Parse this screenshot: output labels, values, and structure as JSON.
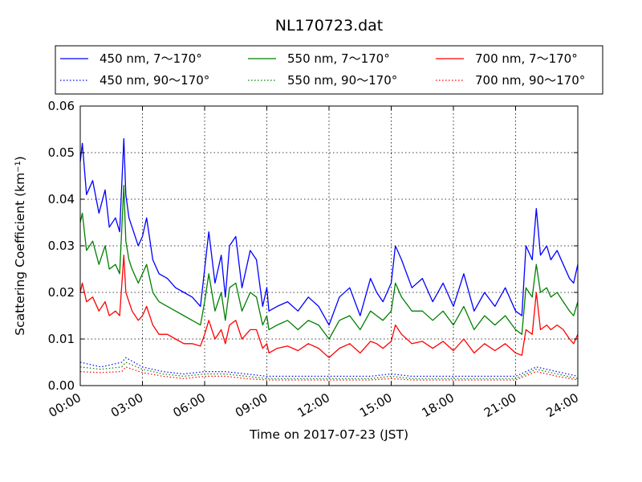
{
  "chart_data": {
    "type": "line",
    "title": "NL170723.dat",
    "xlabel": "Time on 2017-07-23 (JST)",
    "ylabel": "Scattering Coefficient (km⁻¹)",
    "xlim": [
      0,
      24
    ],
    "ylim": [
      0,
      0.06
    ],
    "x_ticks": [
      0,
      3,
      6,
      9,
      12,
      15,
      18,
      21,
      24
    ],
    "x_tick_labels": [
      "00:00",
      "03:00",
      "06:00",
      "09:00",
      "12:00",
      "15:00",
      "18:00",
      "21:00",
      "24:00"
    ],
    "y_ticks": [
      0,
      0.01,
      0.02,
      0.03,
      0.04,
      0.05,
      0.06
    ],
    "y_tick_labels": [
      "0.00",
      "0.01",
      "0.02",
      "0.03",
      "0.04",
      "0.05",
      "0.06"
    ],
    "grid": true,
    "legend_position": "top",
    "series": [
      {
        "name": "450 nm, 7～170°",
        "color": "#0000ff",
        "style": "solid",
        "x": [
          0,
          0.1,
          0.3,
          0.6,
          0.9,
          1.2,
          1.4,
          1.7,
          1.9,
          2.1,
          2.2,
          2.35,
          2.5,
          2.8,
          3.0,
          3.2,
          3.5,
          3.8,
          4.2,
          4.6,
          5.0,
          5.4,
          5.8,
          6.0,
          6.2,
          6.5,
          6.8,
          7.0,
          7.2,
          7.5,
          7.8,
          8.0,
          8.2,
          8.5,
          8.8,
          9.0,
          9.1,
          9.5,
          10.0,
          10.5,
          11.0,
          11.5,
          12.0,
          12.5,
          13.0,
          13.5,
          14.0,
          14.3,
          14.6,
          15.0,
          15.2,
          15.5,
          16.0,
          16.5,
          17.0,
          17.5,
          18.0,
          18.5,
          19.0,
          19.5,
          20.0,
          20.5,
          21.0,
          21.3,
          21.5,
          21.8,
          22.0,
          22.2,
          22.5,
          22.7,
          23.0,
          23.3,
          23.6,
          23.8,
          24.0
        ],
        "y": [
          0.048,
          0.052,
          0.041,
          0.044,
          0.037,
          0.042,
          0.034,
          0.036,
          0.033,
          0.053,
          0.041,
          0.036,
          0.034,
          0.03,
          0.032,
          0.036,
          0.027,
          0.024,
          0.023,
          0.021,
          0.02,
          0.019,
          0.017,
          0.025,
          0.033,
          0.022,
          0.028,
          0.019,
          0.03,
          0.032,
          0.021,
          0.025,
          0.029,
          0.027,
          0.017,
          0.021,
          0.016,
          0.017,
          0.018,
          0.016,
          0.019,
          0.017,
          0.013,
          0.019,
          0.021,
          0.015,
          0.023,
          0.02,
          0.018,
          0.022,
          0.03,
          0.027,
          0.021,
          0.023,
          0.018,
          0.022,
          0.017,
          0.024,
          0.016,
          0.02,
          0.017,
          0.021,
          0.016,
          0.015,
          0.03,
          0.027,
          0.038,
          0.028,
          0.03,
          0.027,
          0.029,
          0.026,
          0.023,
          0.022,
          0.026
        ]
      },
      {
        "name": "450 nm, 90～170°",
        "color": "#0000ff",
        "style": "dotted",
        "x": [
          0,
          1,
          2,
          2.2,
          3,
          4,
          5,
          6,
          7,
          8,
          9,
          10,
          11,
          12,
          13,
          14,
          15,
          16,
          17,
          18,
          19,
          20,
          21,
          22,
          23,
          24
        ],
        "y": [
          0.005,
          0.004,
          0.005,
          0.006,
          0.004,
          0.003,
          0.0025,
          0.003,
          0.003,
          0.0025,
          0.002,
          0.002,
          0.002,
          0.002,
          0.002,
          0.002,
          0.0025,
          0.002,
          0.002,
          0.002,
          0.002,
          0.002,
          0.002,
          0.004,
          0.003,
          0.002
        ]
      },
      {
        "name": "550 nm, 7～170°",
        "color": "#008000",
        "style": "solid",
        "x": [
          0,
          0.1,
          0.3,
          0.6,
          0.9,
          1.2,
          1.4,
          1.7,
          1.9,
          2.1,
          2.2,
          2.35,
          2.5,
          2.8,
          3.0,
          3.2,
          3.5,
          3.8,
          4.2,
          4.6,
          5.0,
          5.4,
          5.8,
          6.0,
          6.2,
          6.5,
          6.8,
          7.0,
          7.2,
          7.5,
          7.8,
          8.0,
          8.2,
          8.5,
          8.8,
          9.0,
          9.1,
          9.5,
          10.0,
          10.5,
          11.0,
          11.5,
          12.0,
          12.5,
          13.0,
          13.5,
          14.0,
          14.3,
          14.6,
          15.0,
          15.2,
          15.5,
          16.0,
          16.5,
          17.0,
          17.5,
          18.0,
          18.5,
          19.0,
          19.5,
          20.0,
          20.5,
          21.0,
          21.3,
          21.5,
          21.8,
          22.0,
          22.2,
          22.5,
          22.7,
          23.0,
          23.3,
          23.6,
          23.8,
          24.0
        ],
        "y": [
          0.035,
          0.037,
          0.029,
          0.031,
          0.026,
          0.03,
          0.025,
          0.026,
          0.024,
          0.043,
          0.031,
          0.027,
          0.025,
          0.022,
          0.024,
          0.026,
          0.02,
          0.018,
          0.017,
          0.016,
          0.015,
          0.014,
          0.013,
          0.018,
          0.024,
          0.016,
          0.02,
          0.014,
          0.021,
          0.022,
          0.016,
          0.018,
          0.02,
          0.019,
          0.013,
          0.015,
          0.012,
          0.013,
          0.014,
          0.012,
          0.014,
          0.013,
          0.01,
          0.014,
          0.015,
          0.012,
          0.016,
          0.015,
          0.014,
          0.016,
          0.022,
          0.019,
          0.016,
          0.016,
          0.014,
          0.016,
          0.013,
          0.017,
          0.012,
          0.015,
          0.013,
          0.015,
          0.012,
          0.011,
          0.021,
          0.019,
          0.026,
          0.02,
          0.021,
          0.019,
          0.02,
          0.018,
          0.016,
          0.015,
          0.018
        ]
      },
      {
        "name": "550 nm, 90～170°",
        "color": "#008000",
        "style": "dotted",
        "x": [
          0,
          1,
          2,
          2.2,
          3,
          4,
          5,
          6,
          7,
          8,
          9,
          10,
          11,
          12,
          13,
          14,
          15,
          16,
          17,
          18,
          19,
          20,
          21,
          22,
          23,
          24
        ],
        "y": [
          0.004,
          0.0035,
          0.004,
          0.005,
          0.0035,
          0.0025,
          0.002,
          0.0025,
          0.0025,
          0.002,
          0.0015,
          0.0015,
          0.0015,
          0.0015,
          0.0015,
          0.0015,
          0.002,
          0.0015,
          0.0015,
          0.0015,
          0.0015,
          0.0015,
          0.0015,
          0.0035,
          0.0025,
          0.0015
        ]
      },
      {
        "name": "700 nm, 7～170°",
        "color": "#ff0000",
        "style": "solid",
        "x": [
          0,
          0.1,
          0.3,
          0.6,
          0.9,
          1.2,
          1.4,
          1.7,
          1.9,
          2.1,
          2.2,
          2.35,
          2.5,
          2.8,
          3.0,
          3.2,
          3.5,
          3.8,
          4.2,
          4.6,
          5.0,
          5.4,
          5.8,
          6.0,
          6.2,
          6.5,
          6.8,
          7.0,
          7.2,
          7.5,
          7.8,
          8.0,
          8.2,
          8.5,
          8.8,
          9.0,
          9.1,
          9.5,
          10.0,
          10.5,
          11.0,
          11.5,
          12.0,
          12.5,
          13.0,
          13.5,
          14.0,
          14.3,
          14.6,
          15.0,
          15.2,
          15.5,
          16.0,
          16.5,
          17.0,
          17.5,
          18.0,
          18.5,
          19.0,
          19.5,
          20.0,
          20.5,
          21.0,
          21.3,
          21.5,
          21.8,
          22.0,
          22.2,
          22.5,
          22.7,
          23.0,
          23.3,
          23.6,
          23.8,
          24.0
        ],
        "y": [
          0.02,
          0.022,
          0.018,
          0.019,
          0.016,
          0.018,
          0.015,
          0.016,
          0.015,
          0.028,
          0.02,
          0.018,
          0.016,
          0.014,
          0.015,
          0.017,
          0.013,
          0.011,
          0.011,
          0.01,
          0.009,
          0.009,
          0.0085,
          0.011,
          0.014,
          0.01,
          0.012,
          0.009,
          0.013,
          0.014,
          0.01,
          0.011,
          0.012,
          0.012,
          0.008,
          0.009,
          0.007,
          0.008,
          0.0085,
          0.0075,
          0.009,
          0.008,
          0.006,
          0.008,
          0.009,
          0.007,
          0.0095,
          0.009,
          0.008,
          0.0095,
          0.013,
          0.011,
          0.009,
          0.0095,
          0.008,
          0.0095,
          0.0075,
          0.01,
          0.007,
          0.009,
          0.0075,
          0.009,
          0.007,
          0.0065,
          0.012,
          0.011,
          0.02,
          0.012,
          0.013,
          0.012,
          0.013,
          0.012,
          0.01,
          0.009,
          0.011
        ]
      },
      {
        "name": "700 nm, 90～170°",
        "color": "#ff0000",
        "style": "dotted",
        "x": [
          0,
          1,
          2,
          2.2,
          3,
          4,
          5,
          6,
          7,
          8,
          9,
          10,
          11,
          12,
          13,
          14,
          15,
          16,
          17,
          18,
          19,
          20,
          21,
          22,
          23,
          24
        ],
        "y": [
          0.003,
          0.0028,
          0.003,
          0.004,
          0.0028,
          0.002,
          0.0015,
          0.002,
          0.002,
          0.0015,
          0.0012,
          0.0012,
          0.0012,
          0.0012,
          0.0012,
          0.0012,
          0.0015,
          0.0012,
          0.0012,
          0.0012,
          0.0012,
          0.0012,
          0.0012,
          0.003,
          0.002,
          0.0012
        ]
      }
    ]
  }
}
